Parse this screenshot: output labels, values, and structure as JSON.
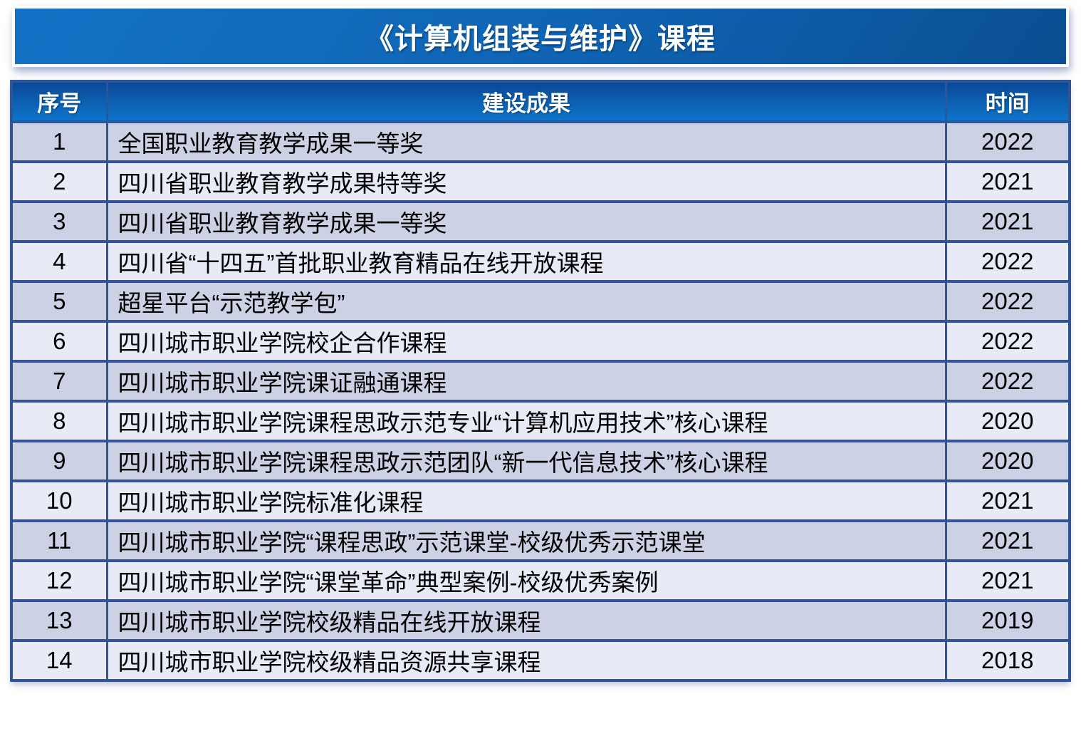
{
  "title": "《计算机组装与维护》课程",
  "table": {
    "headers": {
      "no": "序号",
      "achievement": "建设成果",
      "year": "时间"
    },
    "rows": [
      {
        "no": "1",
        "achievement": "全国职业教育教学成果一等奖",
        "year": "2022"
      },
      {
        "no": "2",
        "achievement": "四川省职业教育教学成果特等奖",
        "year": "2021"
      },
      {
        "no": "3",
        "achievement": "四川省职业教育教学成果一等奖",
        "year": "2021"
      },
      {
        "no": "4",
        "achievement": "四川省“十四五”首批职业教育精品在线开放课程",
        "year": "2022"
      },
      {
        "no": "5",
        "achievement": "超星平台“示范教学包”",
        "year": "2022"
      },
      {
        "no": "6",
        "achievement": "四川城市职业学院校企合作课程",
        "year": "2022"
      },
      {
        "no": "7",
        "achievement": "四川城市职业学院课证融通课程",
        "year": "2022"
      },
      {
        "no": "8",
        "achievement": "四川城市职业学院课程思政示范专业“计算机应用技术”核心课程",
        "year": "2020"
      },
      {
        "no": "9",
        "achievement": "四川城市职业学院课程思政示范团队“新一代信息技术”核心课程",
        "year": "2020"
      },
      {
        "no": "10",
        "achievement": "四川城市职业学院标准化课程",
        "year": "2021"
      },
      {
        "no": "11",
        "achievement": "四川城市职业学院“课程思政”示范课堂-校级优秀示范课堂",
        "year": "2021"
      },
      {
        "no": "12",
        "achievement": "四川城市职业学院“课堂革命”典型案例-校级优秀案例",
        "year": "2021"
      },
      {
        "no": "13",
        "achievement": "四川城市职业学院校级精品在线开放课程",
        "year": "2019"
      },
      {
        "no": "14",
        "achievement": "四川城市职业学院校级精品资源共享课程",
        "year": "2018"
      }
    ]
  },
  "colors": {
    "banner_gradient_start": "#1472c6",
    "banner_gradient_end": "#0a4e92",
    "header_gradient_top": "#0a4894",
    "header_gradient_bottom": "#0e74ca",
    "row_odd_bg": "#ccd1e5",
    "row_even_bg": "#e8eaf5",
    "table_border": "#2f5597",
    "header_text": "#ffffff",
    "body_text": "#000000"
  }
}
